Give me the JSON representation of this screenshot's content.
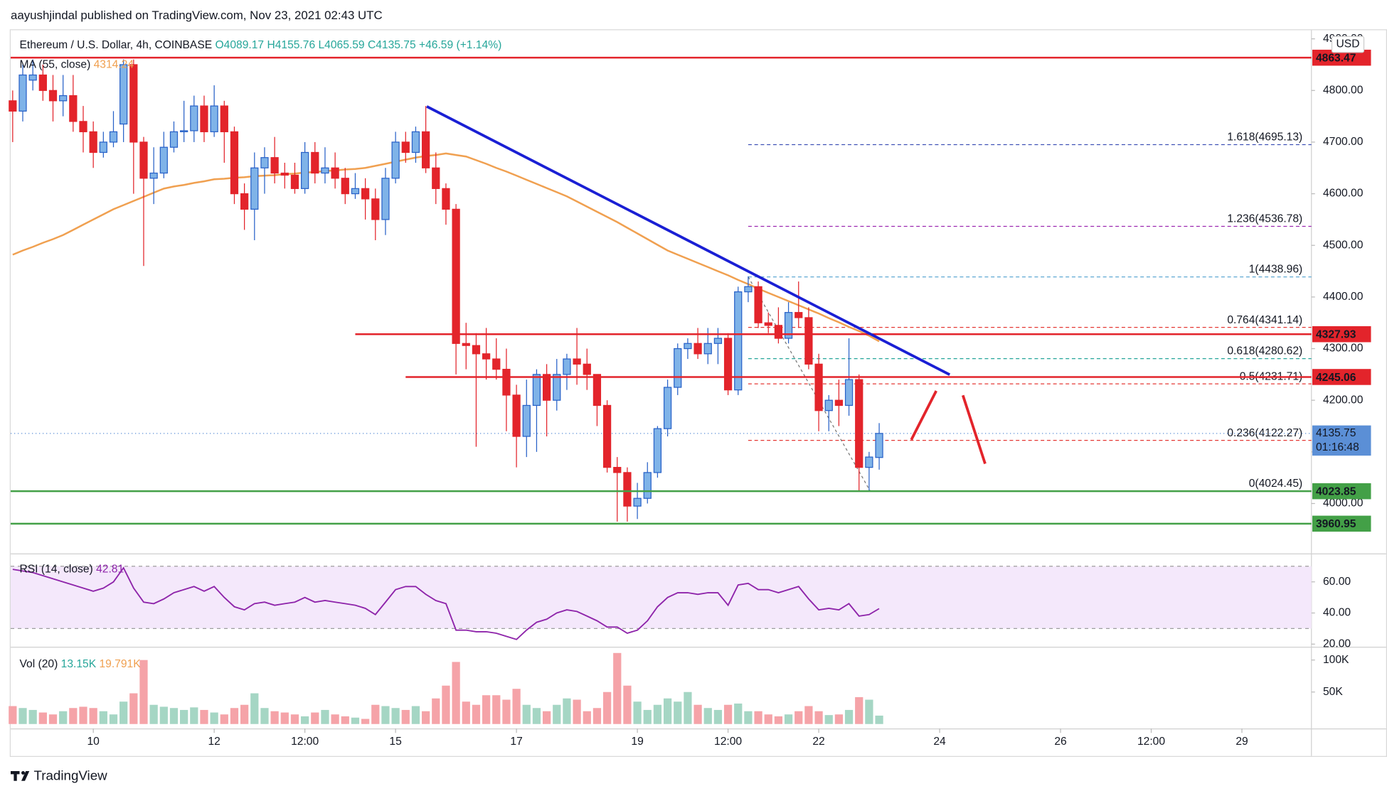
{
  "header": {
    "publisher": "aayushjindal published on TradingView.com, Nov 23, 2021 02:43 UTC"
  },
  "footer": {
    "brand": "TradingView"
  },
  "chart_data": [
    {
      "type": "candlestick",
      "title": "Ethereum / U.S. Dollar, 4h, COINBASE",
      "ohlc_labels": [
        "O4089.17",
        "H4155.76",
        "L4065.59",
        "C4135.75",
        "+46.59 (+1.14%)"
      ],
      "currency": "USD",
      "xlim": [
        -0.2,
        128.9
      ],
      "xticks": [
        {
          "value": 8,
          "label": "10"
        },
        {
          "value": 20,
          "label": "12"
        },
        {
          "value": 29,
          "label": "12:00"
        },
        {
          "value": 38,
          "label": "15"
        },
        {
          "value": 50,
          "label": "17"
        },
        {
          "value": 62,
          "label": "19"
        },
        {
          "value": 71,
          "label": "12:00"
        },
        {
          "value": 80,
          "label": "22"
        },
        {
          "value": 92,
          "label": "24"
        },
        {
          "value": 104,
          "label": "26"
        },
        {
          "value": 113,
          "label": "12:00"
        },
        {
          "value": 122,
          "label": "29"
        }
      ],
      "ylim": [
        3905,
        4915
      ],
      "yticks": [
        {
          "value": 4000,
          "label": "4000.00"
        },
        {
          "value": 4100,
          "label": "4100.00"
        },
        {
          "value": 4200,
          "label": "4200.00"
        },
        {
          "value": 4300,
          "label": "4300.00"
        },
        {
          "value": 4400,
          "label": "4400.00"
        },
        {
          "value": 4500,
          "label": "4500.00"
        },
        {
          "value": 4600,
          "label": "4600.00"
        },
        {
          "value": 4700,
          "label": "4700.00"
        },
        {
          "value": 4800,
          "label": "4800.00"
        },
        {
          "value": 4900,
          "label": "4900.00"
        }
      ],
      "up_color": "#7fb3e8",
      "up_border": "#2962c8",
      "down_color": "#e3242b",
      "ohlc": [
        [
          4780,
          4800,
          4700,
          4760
        ],
        [
          4760,
          4850,
          4740,
          4830
        ],
        [
          4820,
          4860,
          4800,
          4830
        ],
        [
          4830,
          4850,
          4780,
          4800
        ],
        [
          4800,
          4830,
          4740,
          4780
        ],
        [
          4780,
          4830,
          4750,
          4790
        ],
        [
          4790,
          4830,
          4720,
          4740
        ],
        [
          4740,
          4770,
          4680,
          4720
        ],
        [
          4720,
          4740,
          4650,
          4680
        ],
        [
          4680,
          4720,
          4670,
          4700
        ],
        [
          4700,
          4760,
          4690,
          4720
        ],
        [
          4735,
          4860,
          4700,
          4850
        ],
        [
          4850,
          4860,
          4600,
          4700
        ],
        [
          4700,
          4710,
          4460,
          4630
        ],
        [
          4630,
          4690,
          4580,
          4640
        ],
        [
          4640,
          4720,
          4630,
          4690
        ],
        [
          4690,
          4740,
          4680,
          4720
        ],
        [
          4720,
          4780,
          4700,
          4722
        ],
        [
          4722,
          4790,
          4700,
          4770
        ],
        [
          4770,
          4790,
          4700,
          4720
        ],
        [
          4720,
          4810,
          4710,
          4770
        ],
        [
          4770,
          4780,
          4660,
          4720
        ],
        [
          4720,
          4730,
          4580,
          4600
        ],
        [
          4600,
          4620,
          4530,
          4570
        ],
        [
          4570,
          4680,
          4510,
          4650
        ],
        [
          4650,
          4690,
          4600,
          4670
        ],
        [
          4670,
          4710,
          4620,
          4640
        ],
        [
          4640,
          4660,
          4610,
          4636
        ],
        [
          4636,
          4660,
          4600,
          4610
        ],
        [
          4610,
          4700,
          4600,
          4680
        ],
        [
          4680,
          4700,
          4620,
          4640
        ],
        [
          4640,
          4690,
          4620,
          4650
        ],
        [
          4650,
          4680,
          4610,
          4630
        ],
        [
          4630,
          4650,
          4580,
          4600
        ],
        [
          4600,
          4640,
          4590,
          4610
        ],
        [
          4610,
          4630,
          4550,
          4590
        ],
        [
          4590,
          4610,
          4510,
          4550
        ],
        [
          4550,
          4650,
          4520,
          4630
        ],
        [
          4630,
          4720,
          4620,
          4700
        ],
        [
          4700,
          4720,
          4660,
          4680
        ],
        [
          4680,
          4730,
          4660,
          4720
        ],
        [
          4720,
          4770,
          4640,
          4650
        ],
        [
          4650,
          4680,
          4580,
          4610
        ],
        [
          4610,
          4620,
          4540,
          4570
        ],
        [
          4570,
          4580,
          4250,
          4310
        ],
        [
          4310,
          4350,
          4260,
          4306
        ],
        [
          4306,
          4330,
          4110,
          4290
        ],
        [
          4290,
          4340,
          4240,
          4280
        ],
        [
          4280,
          4320,
          4240,
          4260
        ],
        [
          4260,
          4300,
          4140,
          4210
        ],
        [
          4210,
          4230,
          4070,
          4130
        ],
        [
          4130,
          4240,
          4090,
          4190
        ],
        [
          4190,
          4260,
          4100,
          4250
        ],
        [
          4250,
          4270,
          4130,
          4200
        ],
        [
          4200,
          4280,
          4180,
          4250
        ],
        [
          4250,
          4290,
          4220,
          4280
        ],
        [
          4280,
          4340,
          4230,
          4270
        ],
        [
          4270,
          4300,
          4220,
          4250
        ],
        [
          4250,
          4250,
          4150,
          4190
        ],
        [
          4190,
          4200,
          4060,
          4070
        ],
        [
          4070,
          4090,
          3965,
          4060
        ],
        [
          4060,
          4070,
          3965,
          3995
        ],
        [
          3995,
          4040,
          3970,
          4010
        ],
        [
          4010,
          4080,
          4000,
          4060
        ],
        [
          4060,
          4150,
          4050,
          4145
        ],
        [
          4145,
          4240,
          4130,
          4225
        ],
        [
          4225,
          4310,
          4210,
          4300
        ],
        [
          4300,
          4320,
          4280,
          4310
        ],
        [
          4310,
          4340,
          4280,
          4290
        ],
        [
          4290,
          4340,
          4270,
          4310
        ],
        [
          4310,
          4340,
          4270,
          4320
        ],
        [
          4320,
          4330,
          4210,
          4220
        ],
        [
          4220,
          4420,
          4210,
          4410
        ],
        [
          4410,
          4440,
          4390,
          4420
        ],
        [
          4420,
          4430,
          4340,
          4350
        ],
        [
          4350,
          4370,
          4330,
          4345
        ],
        [
          4345,
          4380,
          4310,
          4320
        ],
        [
          4320,
          4390,
          4310,
          4370
        ],
        [
          4370,
          4430,
          4340,
          4360
        ],
        [
          4360,
          4380,
          4260,
          4270
        ],
        [
          4270,
          4290,
          4140,
          4180
        ],
        [
          4180,
          4210,
          4140,
          4200
        ],
        [
          4200,
          4240,
          4150,
          4190
        ],
        [
          4190,
          4320,
          4170,
          4240
        ],
        [
          4240,
          4250,
          4025,
          4070
        ],
        [
          4070,
          4100,
          4024,
          4090
        ],
        [
          4089.17,
          4155.76,
          4065.59,
          4135.75
        ]
      ],
      "ma": {
        "name": "MA (55, close)",
        "value_label": "4314.24",
        "color": "#f0a050",
        "values": [
          4482,
          4490,
          4497,
          4505,
          4512,
          4520,
          4530,
          4540,
          4550,
          4560,
          4570,
          4578,
          4586,
          4594,
          4602,
          4610,
          4614,
          4617,
          4621,
          4624,
          4628,
          4629,
          4631,
          4632,
          4634,
          4635,
          4636,
          4638,
          4639,
          4641,
          4642,
          4644,
          4645,
          4647,
          4648,
          4650,
          4654,
          4658,
          4662,
          4666,
          4670,
          4673,
          4675,
          4678,
          4675,
          4672,
          4665,
          4658,
          4650,
          4643,
          4635,
          4627,
          4619,
          4611,
          4603,
          4595,
          4585,
          4575,
          4565,
          4555,
          4545,
          4534,
          4523,
          4512,
          4501,
          4490,
          4482,
          4474,
          4466,
          4458,
          4450,
          4442,
          4433,
          4425,
          4416,
          4408,
          4400,
          4392,
          4384,
          4376,
          4368,
          4359,
          4351,
          4342,
          4334,
          4325,
          4314.24
        ]
      },
      "levels": [
        {
          "value": 4863.47,
          "color": "#e3242b",
          "from_x": -0.2
        },
        {
          "value": 4327.93,
          "color": "#e3242b",
          "from_x": 34
        },
        {
          "value": 4245.06,
          "color": "#e3242b",
          "from_x": 39
        },
        {
          "value": 4023.85,
          "color": "#43a047",
          "from_x": -0.2
        },
        {
          "value": 3960.95,
          "color": "#43a047",
          "from_x": -0.2
        }
      ],
      "current": {
        "value": 4135.75,
        "countdown": "01:16:48",
        "color": "#5b8fd6"
      },
      "trendline": {
        "x": [
          41.1,
          93
        ],
        "y": [
          4769,
          4249.5
        ],
        "color": "#1a1fd4"
      },
      "fib": {
        "from_x": 73,
        "levels": [
          {
            "value": 4695.13,
            "label": "1.618(4695.13)",
            "color": "#3f51b5"
          },
          {
            "value": 4536.78,
            "label": "1.236(4536.78)",
            "color": "#9c27b0"
          },
          {
            "value": 4438.96,
            "label": "1(4438.96)",
            "color": "#5fa8d3"
          },
          {
            "value": 4341.14,
            "label": "0.764(4341.14)",
            "color": "#e53935"
          },
          {
            "value": 4280.62,
            "label": "0.618(4280.62)",
            "color": "#26a69a"
          },
          {
            "value": 4231.71,
            "label": "0.5(4231.71)",
            "color": "#e53935"
          },
          {
            "value": 4122.27,
            "label": "0.236(4122.27)",
            "color": "#e53935"
          },
          {
            "value": 4024.45,
            "label": "0(4024.45)",
            "color": "#888888"
          }
        ]
      }
    },
    {
      "type": "line",
      "title": "RSI (14, close)",
      "value_label": "42.81",
      "color": "#8e24aa",
      "ylim": [
        18.9,
        77.1
      ],
      "yticks": [
        {
          "value": 20,
          "label": "20.00"
        },
        {
          "value": 40,
          "label": "40.00"
        },
        {
          "value": 60,
          "label": "60.00"
        }
      ],
      "band": [
        30,
        70
      ],
      "band_color": "#f4e8fb",
      "values": [
        68,
        67,
        66,
        64,
        62,
        60,
        58,
        56,
        54,
        56,
        60,
        69,
        56,
        47,
        46,
        49,
        53,
        55,
        57,
        54,
        57,
        50,
        44,
        42,
        46,
        47,
        45,
        46,
        47,
        50,
        47,
        48,
        47,
        46,
        45,
        43,
        39,
        47,
        55,
        57,
        57,
        52,
        48,
        46,
        29,
        29,
        28,
        28,
        27,
        25,
        23,
        29,
        34,
        36,
        40,
        42,
        41,
        38,
        35,
        31,
        31,
        27,
        29,
        35,
        44,
        50,
        53,
        53,
        52,
        53,
        53,
        45,
        58,
        59,
        55,
        55,
        53,
        55,
        57,
        49,
        42,
        43,
        42,
        46,
        38,
        39,
        42.81
      ]
    },
    {
      "type": "bar",
      "title": "Vol (20)",
      "last_label": "13.15K",
      "ma_label": "19.791K",
      "up_color": "#a5d6c4",
      "down_color": "#f5a3a8",
      "ylim": [
        0,
        118000
      ],
      "yticks": [
        {
          "value": 100000,
          "label": "100K"
        },
        {
          "value": 50000,
          "label": "50K"
        }
      ],
      "values": [
        28000,
        25000,
        22000,
        18000,
        15000,
        20000,
        25000,
        27000,
        25000,
        20000,
        15000,
        35000,
        48000,
        100000,
        30000,
        27000,
        25000,
        22000,
        26000,
        22000,
        18000,
        15000,
        25000,
        30000,
        48000,
        25000,
        20000,
        18000,
        15000,
        12000,
        18000,
        22000,
        15000,
        12000,
        10000,
        8000,
        30000,
        28000,
        25000,
        22000,
        28000,
        20000,
        40000,
        60000,
        97000,
        35000,
        30000,
        45000,
        45000,
        38000,
        55000,
        30000,
        25000,
        20000,
        30000,
        40000,
        38000,
        20000,
        25000,
        50000,
        111000,
        60000,
        35000,
        22000,
        30000,
        40000,
        35000,
        50000,
        30000,
        25000,
        22000,
        30000,
        32000,
        20000,
        20000,
        15000,
        12000,
        15000,
        20000,
        28000,
        20000,
        14000,
        15000,
        22000,
        42000,
        38000,
        13150
      ]
    }
  ]
}
